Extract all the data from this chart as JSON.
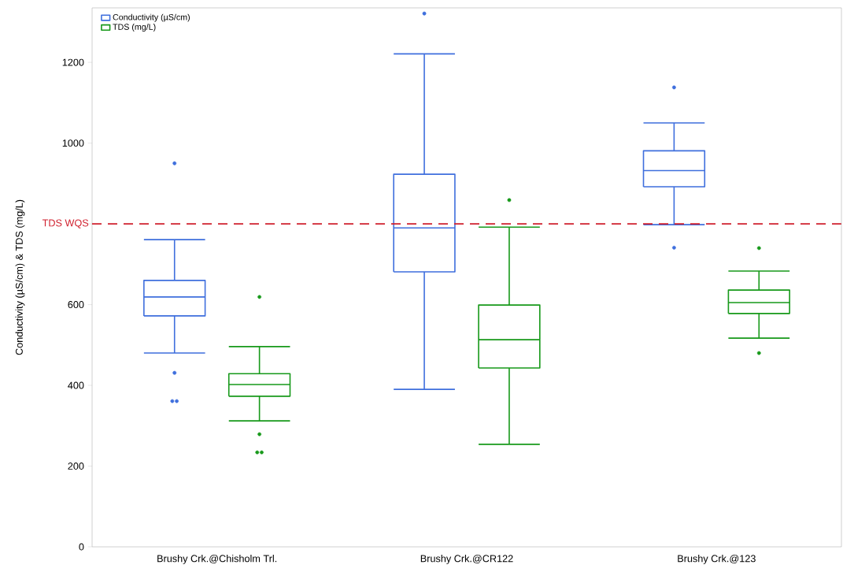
{
  "chart_data": {
    "type": "box",
    "ylabel": "Conductivity (µS/cm) & TDS (mg/L)",
    "categories": [
      "Brushy Crk.@Chisholm Trl.",
      "Brushy Crk.@CR122",
      "Brushy Crk.@123"
    ],
    "series": [
      {
        "name": "Conductivity (µS/cm)",
        "color": "#3f6fdd",
        "boxes": [
          {
            "low": 480,
            "q1": 572,
            "median": 619,
            "q3": 660,
            "high": 761,
            "outliers": [
              950,
              431,
              361,
              361
            ]
          },
          {
            "low": 390,
            "q1": 681,
            "median": 790,
            "q3": 923,
            "high": 1221,
            "outliers": [
              1321
            ]
          },
          {
            "low": 798,
            "q1": 892,
            "median": 932,
            "q3": 981,
            "high": 1050,
            "outliers": [
              1138,
              741
            ]
          }
        ]
      },
      {
        "name": "TDS (mg/L)",
        "color": "#17991a",
        "boxes": [
          {
            "low": 312,
            "q1": 373,
            "median": 402,
            "q3": 429,
            "high": 496,
            "outliers": [
              619,
              279,
              234,
              234
            ]
          },
          {
            "low": 254,
            "q1": 443,
            "median": 513,
            "q3": 599,
            "high": 792,
            "outliers": [
              859
            ]
          },
          {
            "low": 517,
            "q1": 578,
            "median": 605,
            "q3": 636,
            "high": 683,
            "outliers": [
              740,
              480
            ]
          }
        ]
      }
    ],
    "ref_lines": [
      {
        "axis": "y",
        "value": 800,
        "label": "TDS WQS",
        "color": "#d0202e",
        "line_style": "dashed"
      }
    ],
    "ylim": [
      0,
      1335
    ],
    "yticks": [
      0,
      200,
      400,
      600,
      {
        "value": 800,
        "label": null
      },
      1000,
      1200
    ],
    "legend": "top left"
  }
}
